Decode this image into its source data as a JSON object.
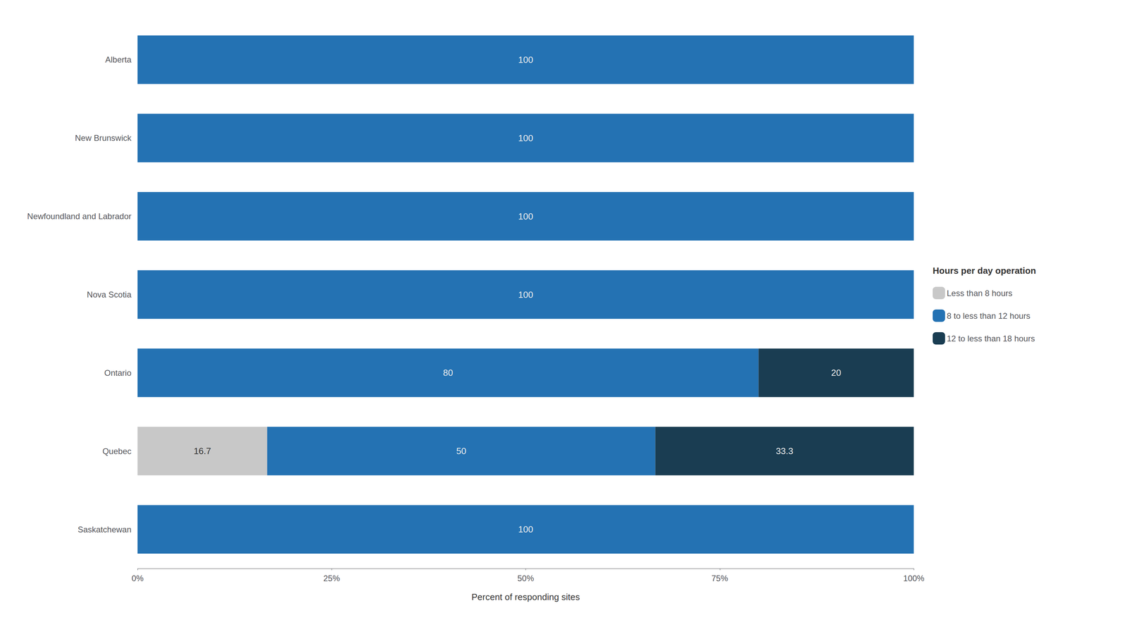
{
  "chart_data": {
    "type": "bar",
    "orientation": "horizontal",
    "stacked": true,
    "categories": [
      "Saskatchewan",
      "Quebec",
      "Ontario",
      "Nova Scotia",
      "Newfoundland and Labrador",
      "New Brunswick",
      "Alberta"
    ],
    "series": [
      {
        "name": "Less than 8 hours",
        "color": "#c8c8c8",
        "values": [
          0,
          16.7,
          0,
          0,
          0,
          0,
          0
        ]
      },
      {
        "name": "8 to less than 12 hours",
        "color": "#2472b3",
        "values": [
          100,
          50,
          80,
          100,
          100,
          100,
          100
        ]
      },
      {
        "name": "12 to less than 18 hours",
        "color": "#1a3d52",
        "values": [
          0,
          33.3,
          20,
          0,
          0,
          0,
          0
        ]
      }
    ],
    "xlabel": "Percent of responding sites",
    "xlim": [
      0,
      100
    ],
    "xticks": [
      {
        "value": 0,
        "label": "0%"
      },
      {
        "value": 25,
        "label": "25%"
      },
      {
        "value": 50,
        "label": "50%"
      },
      {
        "value": 75,
        "label": "75%"
      },
      {
        "value": 100,
        "label": "100%"
      }
    ],
    "legend": "right",
    "legend_title": "Hours per day operation",
    "grid": false,
    "data_labels": true
  }
}
